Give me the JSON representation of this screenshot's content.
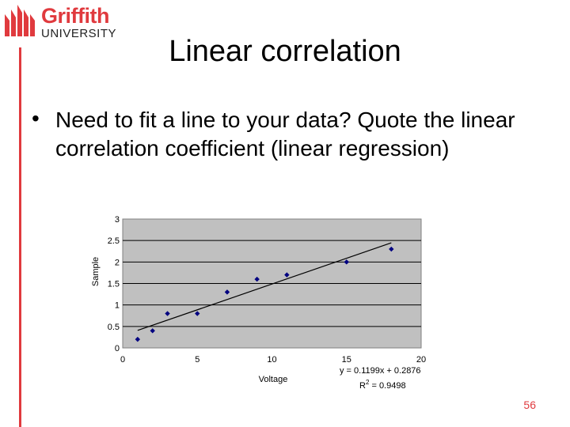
{
  "logo": {
    "name": "Griffith",
    "sub": "UNIVERSITY"
  },
  "title": "Linear correlation",
  "bullet_marker": "•",
  "bullet_text": "Need to fit a line to your data? Quote the linear correlation coefficient (linear regression)",
  "page_number": "56",
  "colors": {
    "accent": "#e03a3e",
    "plot_bg": "#c0c0c0",
    "marker": "#000080"
  },
  "chart_data": {
    "type": "scatter",
    "xlabel": "Voltage",
    "ylabel": "Sample",
    "xlim": [
      0,
      20
    ],
    "ylim": [
      0,
      3
    ],
    "x_ticks": [
      "0",
      "5",
      "10",
      "15",
      "20"
    ],
    "y_ticks": [
      "0",
      "0.5",
      "1",
      "1.5",
      "2",
      "2.5",
      "3"
    ],
    "grid": "horizontal",
    "series": [
      {
        "x": [
          1,
          2,
          3,
          5,
          7,
          9,
          11,
          15,
          18
        ],
        "y": [
          0.2,
          0.4,
          0.8,
          0.8,
          1.3,
          1.6,
          1.7,
          2.0,
          2.3
        ]
      }
    ],
    "trendline": {
      "slope": 0.1199,
      "intercept": 0.2876,
      "x_range": [
        1,
        18
      ]
    },
    "equation_label": "y = 0.1199x + 0.2876",
    "r2_label": {
      "prefix": "R",
      "sup": "2",
      "value": " = 0.9498"
    }
  }
}
